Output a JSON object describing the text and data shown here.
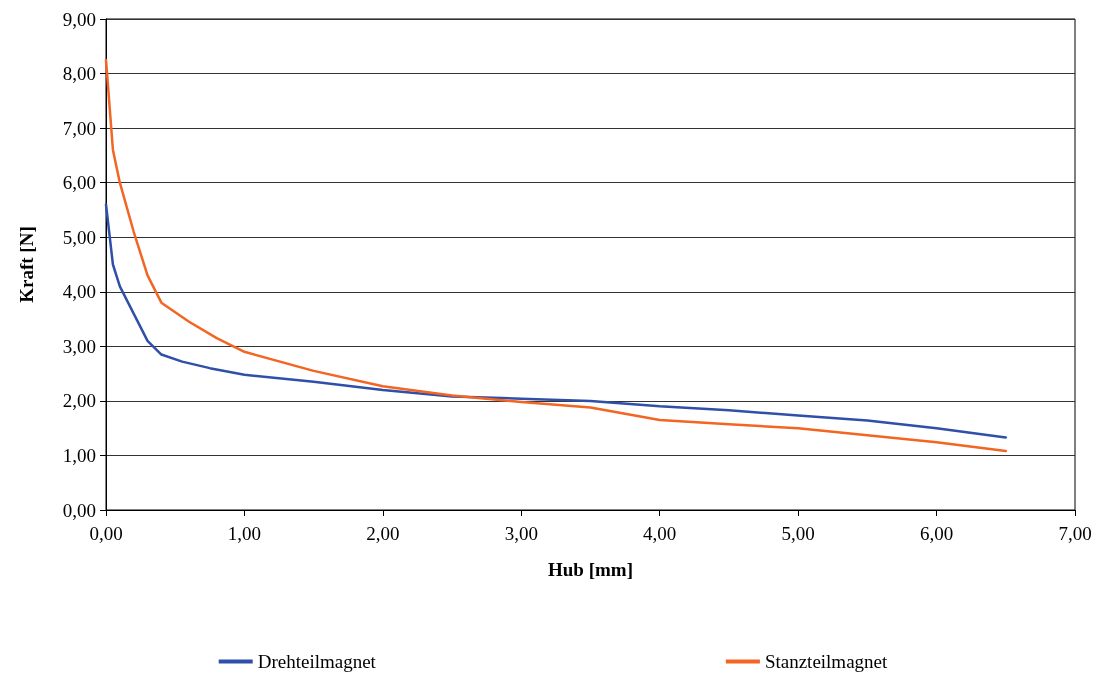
{
  "chart_data": {
    "type": "line",
    "xlabel": "Hub [mm]",
    "ylabel": "Kraft [N]",
    "xlim": [
      0,
      7
    ],
    "ylim": [
      0,
      9
    ],
    "xticks": [
      {
        "value": 0,
        "label": "0,00"
      },
      {
        "value": 1,
        "label": "1,00"
      },
      {
        "value": 2,
        "label": "2,00"
      },
      {
        "value": 3,
        "label": "3,00"
      },
      {
        "value": 4,
        "label": "4,00"
      },
      {
        "value": 5,
        "label": "5,00"
      },
      {
        "value": 6,
        "label": "6,00"
      },
      {
        "value": 7,
        "label": "7,00"
      }
    ],
    "yticks": [
      {
        "value": 0,
        "label": "0,00"
      },
      {
        "value": 1,
        "label": "1,00"
      },
      {
        "value": 2,
        "label": "2,00"
      },
      {
        "value": 3,
        "label": "3,00"
      },
      {
        "value": 4,
        "label": "4,00"
      },
      {
        "value": 5,
        "label": "5,00"
      },
      {
        "value": 6,
        "label": "6,00"
      },
      {
        "value": 7,
        "label": "7,00"
      },
      {
        "value": 8,
        "label": "8,00"
      },
      {
        "value": 9,
        "label": "9,00"
      }
    ],
    "grid": "y",
    "legend": "bottom",
    "marker": "none",
    "line_style": "solid",
    "series": [
      {
        "name": "Drehteilmagnet",
        "color": "#2f4fa8",
        "x": [
          0,
          0.05,
          0.1,
          0.2,
          0.3,
          0.4,
          0.55,
          0.75,
          1.0,
          1.5,
          2.0,
          2.5,
          3.0,
          3.5,
          4.0,
          4.5,
          5.0,
          5.5,
          6.0,
          6.5
        ],
        "values": [
          5.6,
          4.5,
          4.1,
          3.6,
          3.1,
          2.85,
          2.72,
          2.6,
          2.48,
          2.35,
          2.2,
          2.08,
          2.04,
          2.0,
          1.9,
          1.83,
          1.73,
          1.64,
          1.5,
          1.33
        ]
      },
      {
        "name": "Stanzteilmagnet",
        "color": "#f26522",
        "x": [
          0,
          0.05,
          0.1,
          0.2,
          0.3,
          0.4,
          0.6,
          0.8,
          1.0,
          1.5,
          2.0,
          2.5,
          3.0,
          3.5,
          4.0,
          4.5,
          5.0,
          5.5,
          6.0,
          6.5
        ],
        "values": [
          8.25,
          6.6,
          6.0,
          5.1,
          4.3,
          3.8,
          3.45,
          3.15,
          2.9,
          2.55,
          2.27,
          2.1,
          1.98,
          1.88,
          1.65,
          1.57,
          1.5,
          1.37,
          1.24,
          1.08
        ]
      }
    ]
  }
}
